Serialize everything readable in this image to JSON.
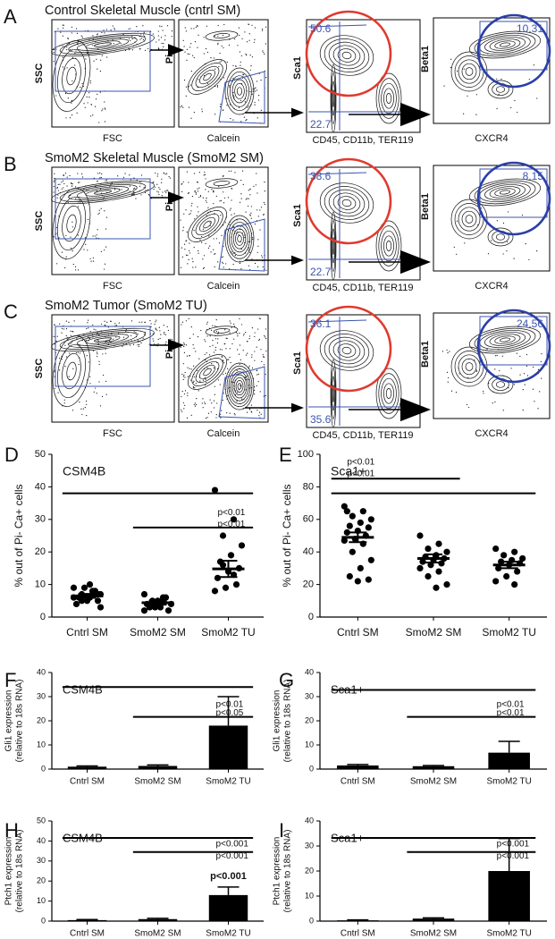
{
  "flow_rows": [
    {
      "letter": "A",
      "title": "Control Skeletal Muscle (cntrl SM)",
      "gates": [
        "50.6",
        "22.7",
        "10.31"
      ]
    },
    {
      "letter": "B",
      "title": "SmoM2 Skeletal Muscle (SmoM2 SM)",
      "gates": [
        "38.6",
        "22.7",
        "8.15"
      ]
    },
    {
      "letter": "C",
      "title": "SmoM2 Tumor (SmoM2 TU)",
      "gates": [
        "36.1",
        "35.6",
        "24.56"
      ]
    }
  ],
  "flow_axis_labels": {
    "ssc": "SSC",
    "fsc": "FSC",
    "pi": "Pi",
    "calcein": "Calcein",
    "sca1": "Sca1",
    "lineage": "CD45, CD11b, TER119",
    "beta1": "Beta1",
    "cxcr4": "CXCR4"
  },
  "chart_data": [
    {
      "type": "strip",
      "panel": "D",
      "title": "CSM4B",
      "ylabel": [
        "% out of Pi- Ca+ cells"
      ],
      "categories": [
        "Cntrl SM",
        "SmoM2 SM",
        "SmoM2 TU"
      ],
      "points": [
        [
          9,
          8,
          7,
          7,
          6,
          6,
          5,
          5,
          4,
          8,
          9,
          6,
          7,
          5,
          3,
          10,
          6,
          7
        ],
        [
          7,
          6,
          5,
          4,
          3,
          3,
          2,
          5,
          4,
          6,
          3,
          2,
          5,
          4
        ],
        [
          39,
          30,
          25,
          22,
          19,
          17,
          15,
          14,
          12,
          10,
          9,
          8,
          13,
          16
        ]
      ],
      "means": [
        6.5,
        4.4,
        14.8
      ],
      "sem": [
        0.6,
        0.6,
        2.5
      ],
      "ylim": [
        0,
        50
      ],
      "yticks": [
        0,
        10,
        20,
        30,
        40,
        50
      ],
      "significance": [
        "p<0.01",
        "p<0.01"
      ]
    },
    {
      "type": "strip",
      "panel": "E",
      "title": "Sca1+",
      "ylabel": [
        "% out of Pi- Ca+ cells"
      ],
      "categories": [
        "Cntrl SM",
        "SmoM2 SM",
        "SmoM2 TU"
      ],
      "points": [
        [
          68,
          65,
          62,
          60,
          58,
          56,
          55,
          53,
          52,
          50,
          48,
          47,
          45,
          40,
          35,
          30,
          25,
          23,
          22,
          65
        ],
        [
          50,
          45,
          42,
          40,
          38,
          37,
          36,
          35,
          34,
          33,
          32,
          30,
          28,
          25,
          20,
          18
        ],
        [
          42,
          40,
          38,
          36,
          35,
          34,
          33,
          32,
          30,
          28,
          25,
          22,
          20
        ]
      ],
      "means": [
        49,
        36,
        32
      ],
      "sem": [
        3,
        2.5,
        2
      ],
      "ylim": [
        0,
        100
      ],
      "yticks": [
        0,
        20,
        40,
        60,
        80,
        100
      ],
      "significance": [
        "p<0.01",
        "p<0.01"
      ]
    },
    {
      "type": "bar",
      "panel": "F",
      "title": "CSM4B",
      "ylabel": [
        "Gli1 expression",
        "(relative to 18s RNA)"
      ],
      "categories": [
        "Cntrl SM",
        "SmoM2 SM",
        "SmoM2 TU"
      ],
      "values": [
        1,
        1.3,
        18
      ],
      "errors": [
        0.3,
        0.4,
        12
      ],
      "ylim": [
        0,
        40
      ],
      "yticks": [
        0,
        10,
        20,
        30,
        40
      ],
      "significance": [
        "p<0.01",
        "p<0.05"
      ]
    },
    {
      "type": "bar",
      "panel": "G",
      "title": "Sca1+",
      "ylabel": [
        "Gli1 expression",
        "(relative to 18s RNA)"
      ],
      "categories": [
        "Cntrl SM",
        "SmoM2 SM",
        "SmoM2 TU"
      ],
      "values": [
        1.5,
        1.2,
        6.8
      ],
      "errors": [
        0.4,
        0.3,
        4.7
      ],
      "ylim": [
        0,
        40
      ],
      "yticks": [
        0,
        10,
        20,
        30,
        40
      ],
      "significance": [
        "p<0.01",
        "p<0.01"
      ]
    },
    {
      "type": "bar",
      "panel": "H",
      "title": "CSM4B",
      "ylabel": [
        "Ptch1 expression",
        "(relative to 18s RNA)"
      ],
      "categories": [
        "Cntrl SM",
        "SmoM2 SM",
        "SmoM2 TU"
      ],
      "values": [
        0.5,
        1,
        13
      ],
      "errors": [
        0.3,
        0.4,
        4
      ],
      "annotation": "p<0.001",
      "ylim": [
        0,
        50
      ],
      "yticks": [
        0,
        10,
        20,
        30,
        40,
        50
      ],
      "significance": [
        "p<0.001",
        "p<0.001"
      ]
    },
    {
      "type": "bar",
      "panel": "I",
      "title": "Sca1+",
      "ylabel": [
        "Ptch1 expression",
        "(relative to 18s RNA)"
      ],
      "categories": [
        "Cntrl SM",
        "SmoM2 SM",
        "SmoM2 TU"
      ],
      "values": [
        0.3,
        1,
        20
      ],
      "errors": [
        0.2,
        0.3,
        13
      ],
      "ylim": [
        0,
        40
      ],
      "yticks": [
        0,
        10,
        20,
        30,
        40
      ],
      "significance": [
        "p<0.001",
        "p<0.001"
      ]
    }
  ]
}
